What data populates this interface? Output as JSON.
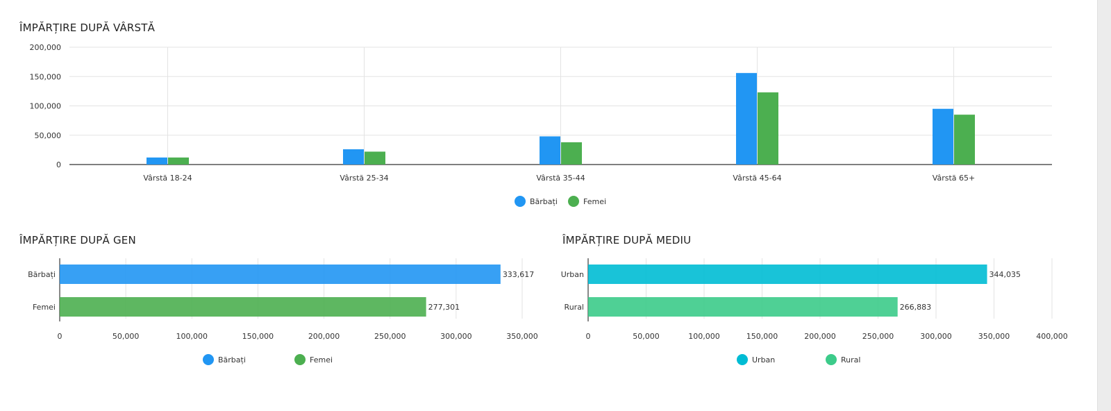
{
  "chart_data": [
    {
      "type": "bar",
      "title": "ÎMPĂRȚIRE DUPĂ VÂRSTĂ",
      "categories": [
        "Vârstă 18-24",
        "Vârstă 25-34",
        "Vârstă 35-44",
        "Vârstă 45-64",
        "Vârstă 65+"
      ],
      "series": [
        {
          "name": "Bărbați",
          "values": [
            12000,
            26000,
            48000,
            156000,
            95000
          ],
          "color": "#2196f3"
        },
        {
          "name": "Femei",
          "values": [
            12000,
            22000,
            38000,
            123000,
            85000
          ],
          "color": "#4caf50"
        }
      ],
      "ylim": [
        0,
        200000
      ],
      "yticks": [
        0,
        50000,
        100000,
        150000,
        200000
      ],
      "ytick_labels": [
        "0",
        "50,000",
        "100,000",
        "150,000",
        "200,000"
      ],
      "grid": true,
      "legend": "bottom-center"
    },
    {
      "type": "bar",
      "orientation": "horizontal",
      "title": "ÎMPĂRȚIRE DUPĂ GEN",
      "categories": [
        "Bărbați",
        "Femei"
      ],
      "values": [
        333617,
        277301
      ],
      "value_labels": [
        "333,617",
        "277,301"
      ],
      "colors": [
        "#2196f3",
        "#4caf50"
      ],
      "legend_entries": [
        {
          "name": "Bărbați",
          "color": "#2196f3"
        },
        {
          "name": "Femei",
          "color": "#4caf50"
        }
      ],
      "xlim": [
        0,
        350000
      ],
      "xticks": [
        0,
        50000,
        100000,
        150000,
        200000,
        250000,
        300000,
        350000
      ],
      "xtick_labels": [
        "0",
        "50,000",
        "100,000",
        "150,000",
        "200,000",
        "250,000",
        "300,000",
        "350,000"
      ],
      "grid": true,
      "legend": "bottom-center"
    },
    {
      "type": "bar",
      "orientation": "horizontal",
      "title": "ÎMPĂRȚIRE DUPĂ MEDIU",
      "categories": [
        "Urban",
        "Rural"
      ],
      "values": [
        344035,
        266883
      ],
      "value_labels": [
        "344,035",
        "266,883"
      ],
      "colors": [
        "#00bcd4",
        "#3ccb8a"
      ],
      "legend_entries": [
        {
          "name": "Urban",
          "color": "#00bcd4"
        },
        {
          "name": "Rural",
          "color": "#3ccb8a"
        }
      ],
      "xlim": [
        0,
        400000
      ],
      "xticks": [
        0,
        50000,
        100000,
        150000,
        200000,
        250000,
        300000,
        350000,
        400000
      ],
      "xtick_labels": [
        "0",
        "50,000",
        "100,000",
        "150,000",
        "200,000",
        "250,000",
        "300,000",
        "350,000",
        "400,000"
      ],
      "grid": true,
      "legend": "bottom-center"
    }
  ]
}
